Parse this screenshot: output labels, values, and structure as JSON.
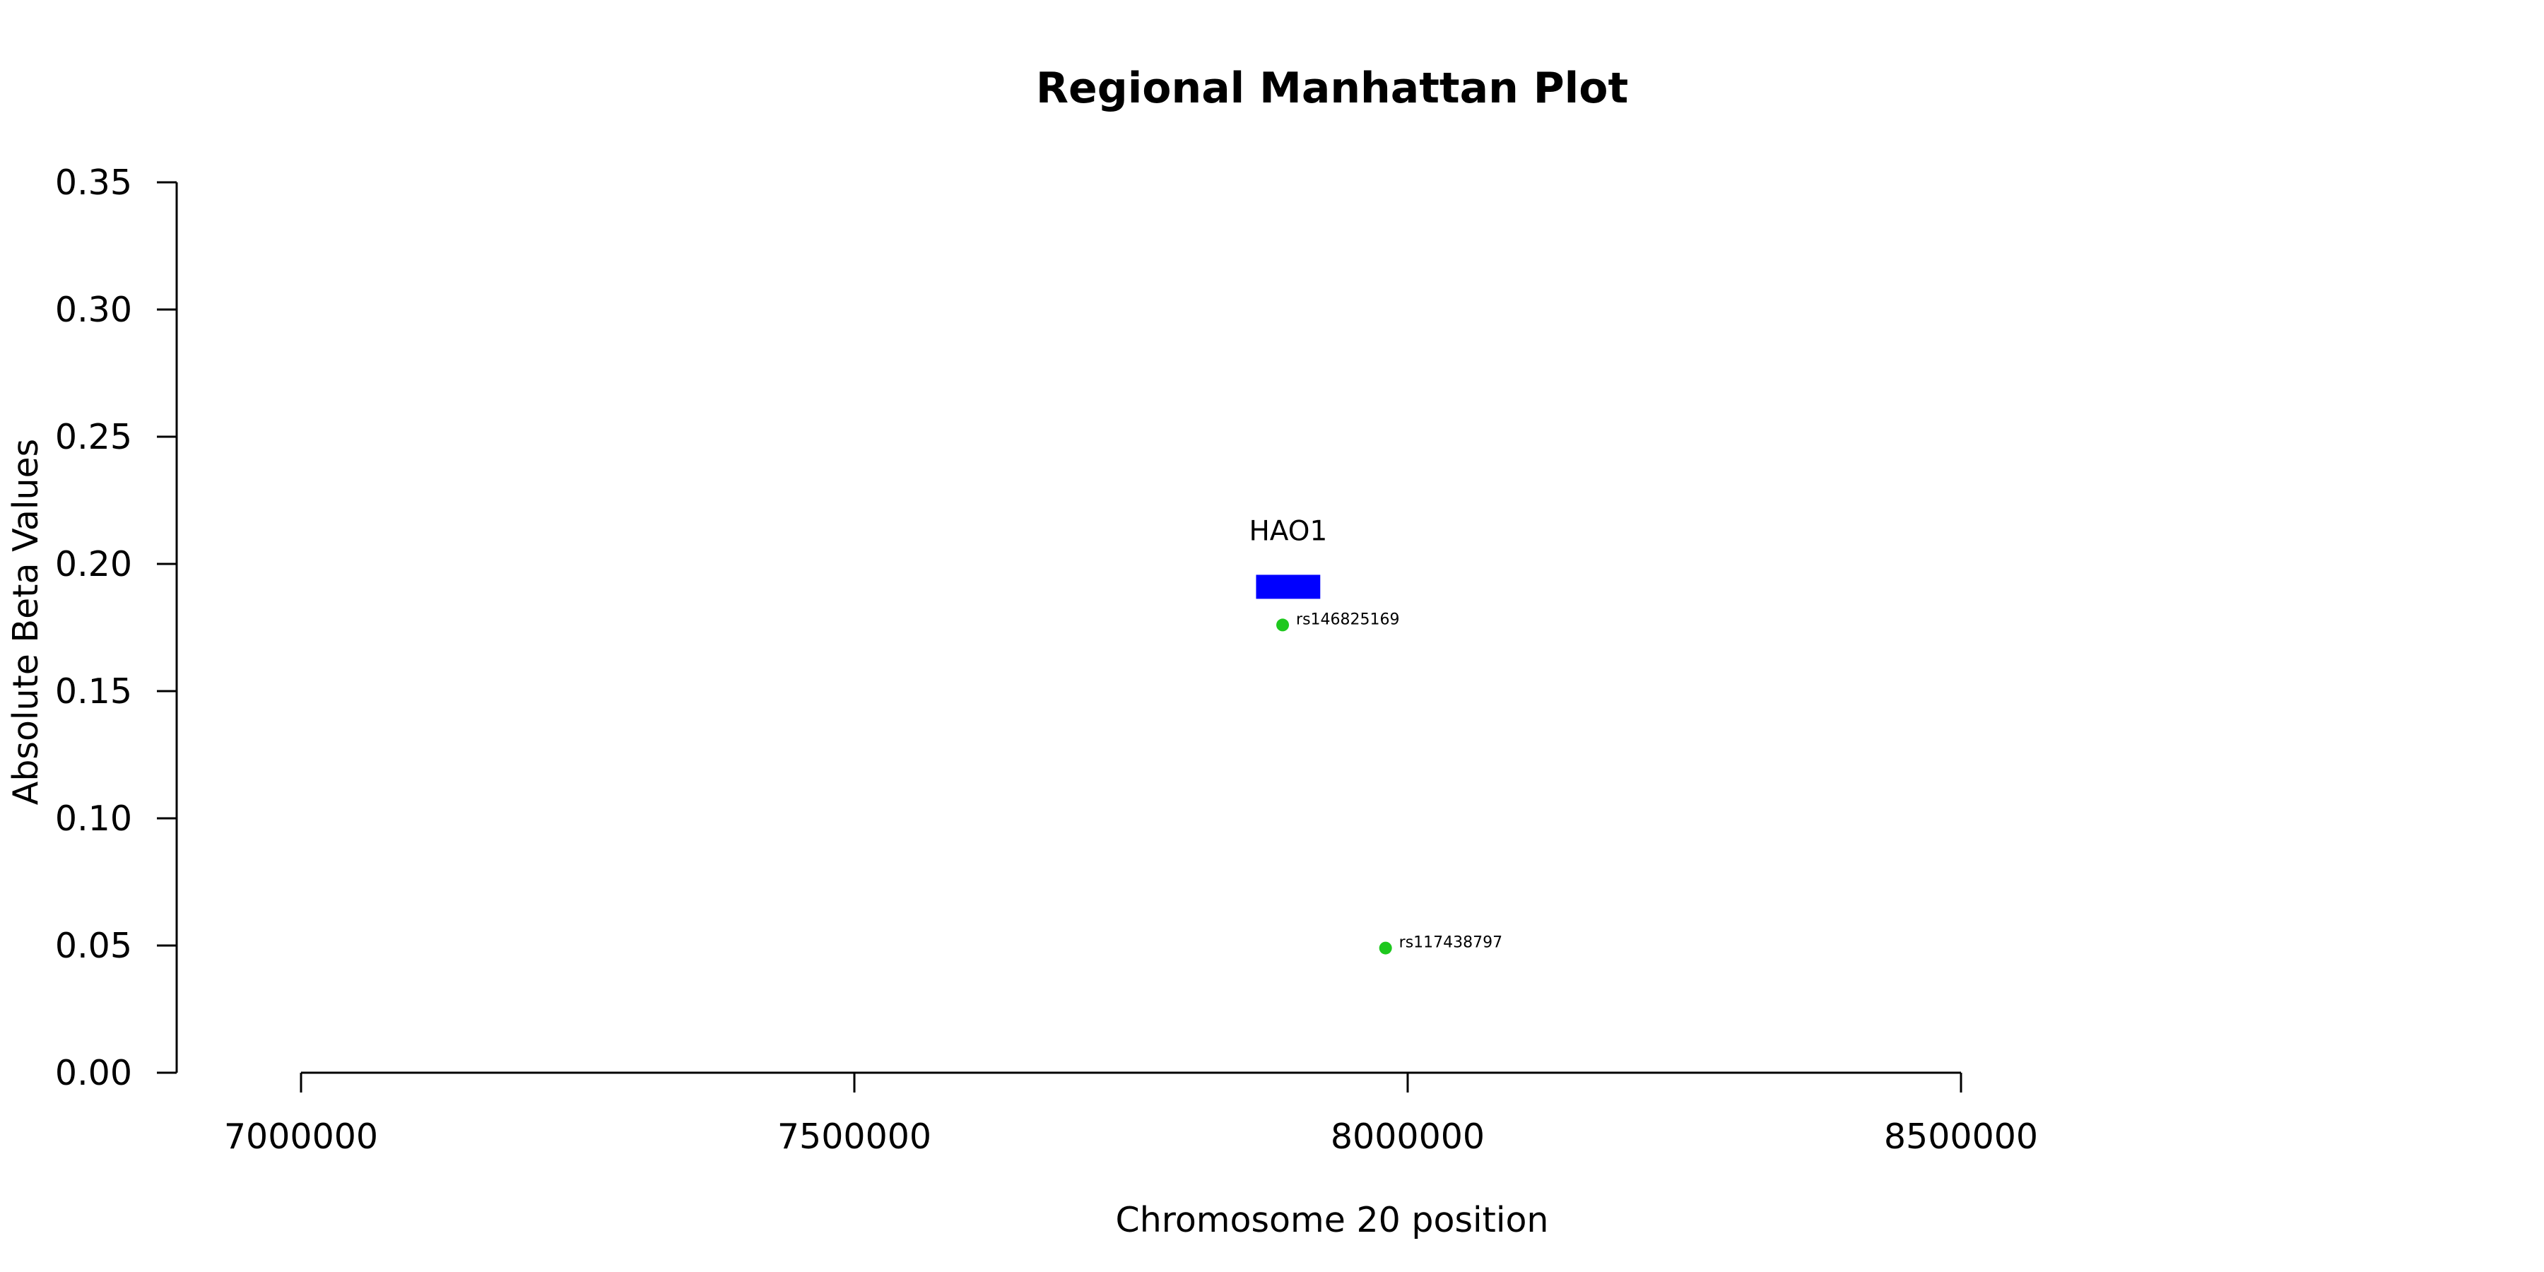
{
  "chart_data": {
    "type": "scatter",
    "title": "Regional Manhattan Plot",
    "xlabel": "Chromosome 20 position",
    "ylabel": "Absolute Beta Values",
    "xlim": [
      7000000,
      8500000
    ],
    "ylim": [
      0,
      0.35
    ],
    "x_ticks": [
      7000000,
      7500000,
      8000000,
      8500000
    ],
    "x_tick_labels": [
      "7000000",
      "7500000",
      "8000000",
      "8500000"
    ],
    "y_ticks": [
      0,
      0.05,
      0.1,
      0.15,
      0.2,
      0.25,
      0.3,
      0.35
    ],
    "y_tick_labels": [
      "0.00",
      "0.05",
      "0.10",
      "0.15",
      "0.20",
      "0.25",
      "0.30",
      "0.35"
    ],
    "grid": false,
    "points": [
      {
        "label": "rs146825169",
        "x": 7887000,
        "y": 0.176
      },
      {
        "label": "rs117438797",
        "x": 7980000,
        "y": 0.049
      }
    ],
    "genes": [
      {
        "name": "HAO1",
        "start": 7863000,
        "end": 7921000,
        "y": 0.191
      }
    ],
    "point_color": "#1ec81e",
    "gene_color": "#0000ff"
  }
}
